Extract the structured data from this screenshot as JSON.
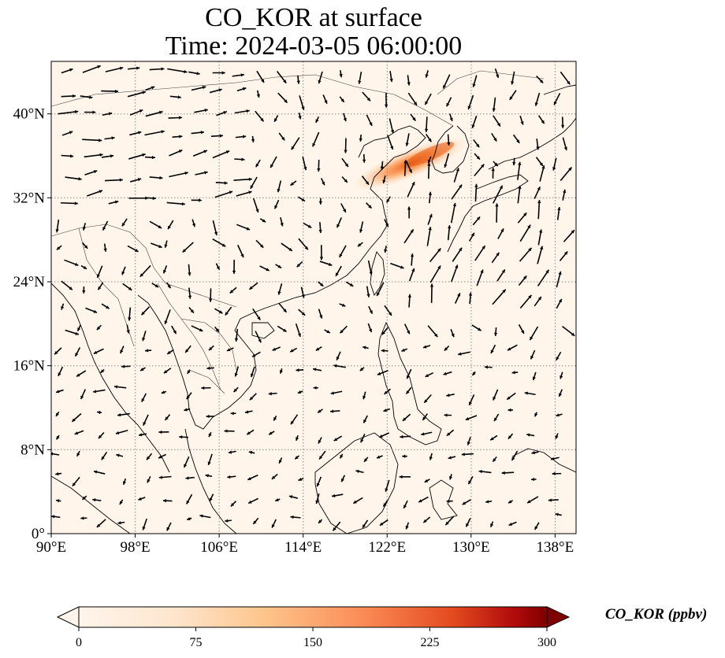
{
  "title": {
    "line1": "CO_KOR at surface",
    "line2": "Time: 2024-03-05 06:00:00"
  },
  "map": {
    "lon_range": [
      90,
      140
    ],
    "lat_range": [
      0,
      45
    ],
    "lon_ticks": [
      {
        "value": 90,
        "label": "90°E"
      },
      {
        "value": 98,
        "label": "98°E"
      },
      {
        "value": 106,
        "label": "106°E"
      },
      {
        "value": 114,
        "label": "114°E"
      },
      {
        "value": 122,
        "label": "122°E"
      },
      {
        "value": 130,
        "label": "130°E"
      },
      {
        "value": 138,
        "label": "138°E"
      }
    ],
    "lat_ticks": [
      {
        "value": 0,
        "label": "0°"
      },
      {
        "value": 8,
        "label": "8°N"
      },
      {
        "value": 16,
        "label": "16°N"
      },
      {
        "value": 24,
        "label": "24°N"
      },
      {
        "value": 32,
        "label": "32°N"
      },
      {
        "value": 40,
        "label": "40°N"
      }
    ],
    "gridlines": true,
    "background_color": "#fff5eb",
    "plume": {
      "lon_range": [
        117,
        128
      ],
      "lat_range": [
        33.5,
        38
      ],
      "max_value": 160
    }
  },
  "colorbar": {
    "label": "CO_KOR (ppbv)",
    "min": 0,
    "max": 300,
    "ticks": [
      "0",
      "75",
      "150",
      "225",
      "300"
    ],
    "colors": [
      "#fff5eb",
      "#fdd0a2",
      "#fd8d3c",
      "#d94801",
      "#a50f15",
      "#67000d"
    ],
    "extend": "both"
  }
}
